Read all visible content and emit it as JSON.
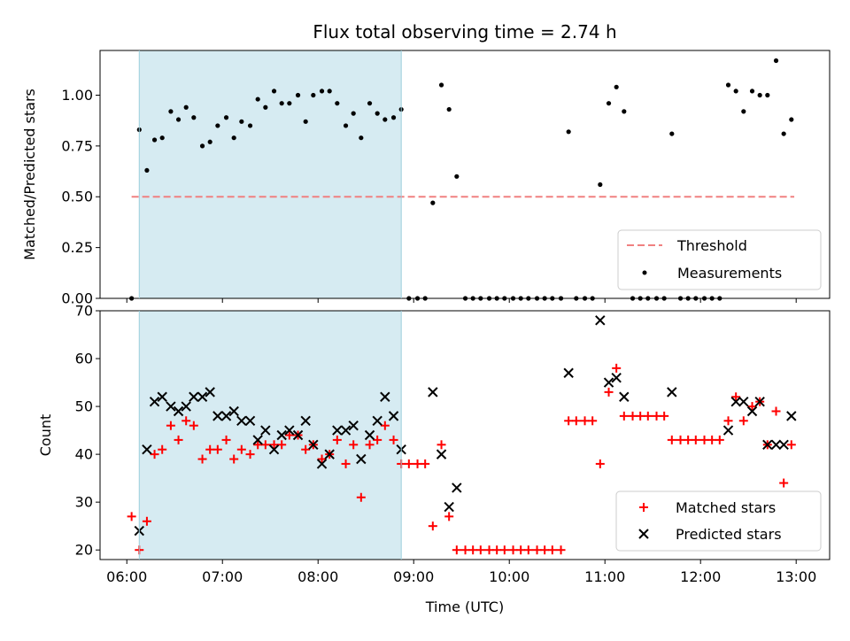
{
  "chart_data": [
    {
      "type": "scatter",
      "title": "Flux total observing time = 2.74 h",
      "xlabel": "",
      "ylabel": "Matched/Predicted stars",
      "ylim": [
        0,
        1.22
      ],
      "yticks": [
        "0.00",
        "0.25",
        "0.50",
        "0.75",
        "1.00"
      ],
      "ytick_values": [
        0,
        0.25,
        0.5,
        0.75,
        1.0
      ],
      "x_unit": "hours UTC",
      "xlim": [
        5.72,
        13.35
      ],
      "shaded_span": [
        6.13,
        8.87
      ],
      "shade_color": "#add8e6",
      "threshold": {
        "name": "Threshold",
        "value": 0.5,
        "x_range": [
          6.05,
          12.98
        ],
        "color": "#f08080"
      },
      "series": [
        {
          "name": "Measurements",
          "color": "#000000",
          "marker": "dot",
          "x": [
            6.05,
            6.13,
            6.21,
            6.29,
            6.37,
            6.46,
            6.54,
            6.62,
            6.7,
            6.79,
            6.87,
            6.95,
            7.04,
            7.12,
            7.2,
            7.29,
            7.37,
            7.45,
            7.54,
            7.62,
            7.7,
            7.79,
            7.87,
            7.95,
            8.04,
            8.12,
            8.2,
            8.29,
            8.37,
            8.45,
            8.54,
            8.62,
            8.7,
            8.79,
            8.87,
            8.95,
            9.04,
            9.12,
            9.2,
            9.29,
            9.37,
            9.45,
            9.54,
            9.62,
            9.7,
            9.79,
            9.87,
            9.95,
            10.04,
            10.12,
            10.2,
            10.29,
            10.37,
            10.45,
            10.54,
            10.62,
            10.7,
            10.79,
            10.87,
            10.95,
            11.04,
            11.12,
            11.2,
            11.29,
            11.37,
            11.45,
            11.54,
            11.62,
            11.7,
            11.79,
            11.87,
            11.95,
            12.04,
            12.12,
            12.2,
            12.29,
            12.37,
            12.45,
            12.54,
            12.62,
            12.7,
            12.79,
            12.87,
            12.95
          ],
          "y": [
            0,
            0.83,
            0.63,
            0.78,
            0.79,
            0.92,
            0.88,
            0.94,
            0.89,
            0.75,
            0.77,
            0.85,
            0.89,
            0.79,
            0.87,
            0.85,
            0.98,
            0.94,
            1.02,
            0.96,
            0.96,
            1.0,
            0.87,
            1.0,
            1.02,
            1.02,
            0.96,
            0.85,
            0.91,
            0.79,
            0.96,
            0.91,
            0.88,
            0.89,
            0.93,
            0,
            0,
            0,
            0.47,
            1.05,
            0.93,
            0.6,
            0,
            0,
            0,
            0,
            0,
            0,
            0,
            0,
            0,
            0,
            0,
            0,
            0,
            0.82,
            0,
            0,
            0,
            0.56,
            0.96,
            1.04,
            0.92,
            0,
            0,
            0,
            0,
            0,
            0.81,
            0,
            0,
            0,
            0,
            0,
            0,
            1.05,
            1.02,
            0.92,
            1.02,
            1.0,
            1.0,
            1.17,
            0.81,
            0.88
          ]
        }
      ],
      "legend": {
        "placement": "lower right",
        "entries": [
          "Threshold",
          "Measurements"
        ]
      }
    },
    {
      "type": "scatter",
      "title": "",
      "xlabel": "Time (UTC)",
      "ylabel": "Count",
      "ylim": [
        18,
        70
      ],
      "yticks": [
        "20",
        "30",
        "40",
        "50",
        "60",
        "70"
      ],
      "ytick_values": [
        20,
        30,
        40,
        50,
        60,
        70
      ],
      "xticks": [
        "06:00",
        "07:00",
        "08:00",
        "09:00",
        "10:00",
        "11:00",
        "12:00",
        "13:00"
      ],
      "xtick_values": [
        6,
        7,
        8,
        9,
        10,
        11,
        12,
        13
      ],
      "xlim": [
        5.72,
        13.35
      ],
      "shaded_span": [
        6.13,
        8.87
      ],
      "shade_color": "#add8e6",
      "x": [
        6.05,
        6.13,
        6.21,
        6.29,
        6.37,
        6.46,
        6.54,
        6.62,
        6.7,
        6.79,
        6.87,
        6.95,
        7.04,
        7.12,
        7.2,
        7.29,
        7.37,
        7.45,
        7.54,
        7.62,
        7.7,
        7.79,
        7.87,
        7.95,
        8.04,
        8.12,
        8.2,
        8.29,
        8.37,
        8.45,
        8.54,
        8.62,
        8.7,
        8.79,
        8.87,
        8.95,
        9.04,
        9.12,
        9.2,
        9.29,
        9.37,
        9.45,
        9.54,
        9.62,
        9.7,
        9.79,
        9.87,
        9.95,
        10.04,
        10.12,
        10.2,
        10.29,
        10.37,
        10.45,
        10.54,
        10.62,
        10.7,
        10.79,
        10.87,
        10.95,
        11.04,
        11.12,
        11.2,
        11.29,
        11.37,
        11.45,
        11.54,
        11.62,
        11.7,
        11.79,
        11.87,
        11.95,
        12.04,
        12.12,
        12.2,
        12.29,
        12.37,
        12.45,
        12.54,
        12.62,
        12.7,
        12.79,
        12.87,
        12.95
      ],
      "series": [
        {
          "name": "Matched stars",
          "color": "#ff0000",
          "marker": "plus",
          "y": [
            27,
            20,
            26,
            40,
            41,
            46,
            43,
            47,
            46,
            39,
            41,
            41,
            43,
            39,
            41,
            40,
            42,
            42,
            42,
            42,
            44,
            44,
            41,
            42,
            39,
            40,
            43,
            38,
            42,
            31,
            42,
            43,
            46,
            43,
            38,
            38,
            38,
            38,
            25,
            42,
            27,
            20,
            20,
            20,
            20,
            20,
            20,
            20,
            20,
            20,
            20,
            20,
            20,
            20,
            20,
            47,
            47,
            47,
            47,
            38,
            53,
            58,
            48,
            48,
            48,
            48,
            48,
            48,
            43,
            43,
            43,
            43,
            43,
            43,
            43,
            47,
            52,
            47,
            50,
            51,
            42,
            49,
            34,
            42
          ]
        },
        {
          "name": "Predicted stars",
          "color": "#000000",
          "marker": "x",
          "y": [
            null,
            24,
            41,
            51,
            52,
            50,
            49,
            50,
            52,
            52,
            53,
            48,
            48,
            49,
            47,
            47,
            43,
            45,
            41,
            44,
            45,
            44,
            47,
            42,
            38,
            40,
            45,
            45,
            46,
            39,
            44,
            47,
            52,
            48,
            41,
            null,
            null,
            null,
            53,
            40,
            29,
            33,
            null,
            null,
            null,
            null,
            null,
            null,
            null,
            null,
            null,
            null,
            null,
            null,
            null,
            57,
            null,
            null,
            null,
            68,
            55,
            56,
            52,
            null,
            null,
            null,
            null,
            null,
            53,
            null,
            null,
            null,
            null,
            null,
            null,
            45,
            51,
            51,
            49,
            51,
            42,
            42,
            42,
            48
          ]
        }
      ],
      "legend": {
        "placement": "lower right",
        "entries": [
          "Matched stars",
          "Predicted stars"
        ]
      }
    }
  ]
}
